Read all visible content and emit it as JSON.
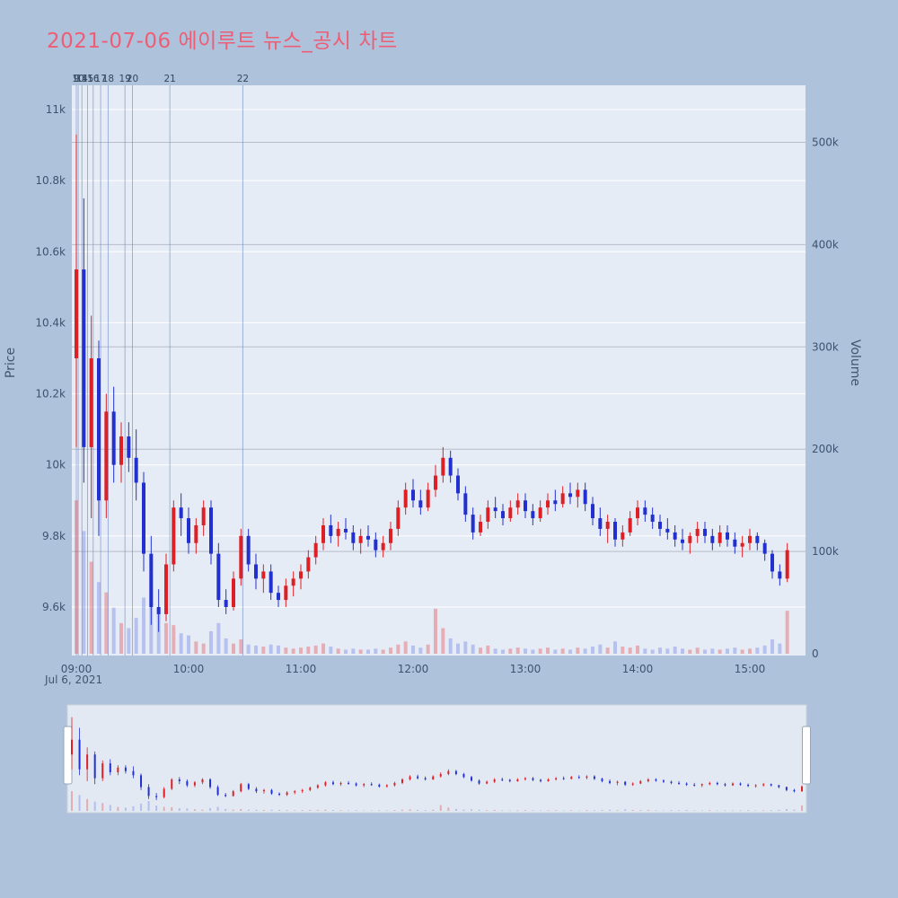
{
  "title": "2021-07-06 에이루트 뉴스_공시 차트",
  "date_label": "Jul 6, 2021",
  "colors": {
    "background": "#aec3db",
    "plot_background": "#e6ecf5",
    "title": "#ed5e76",
    "up": "#dd1f26",
    "down": "#2330d0",
    "up_volume": "rgba(225,60,70,0.35)",
    "down_volume": "rgba(95,115,230,0.35)",
    "grid_price": "#ffffff",
    "grid_volume": "#b6bdc9",
    "event_line": "#6d87c8",
    "tick_text": "#3e5270",
    "rangeslider_bg": "#e2e9f2",
    "rangeslider_border": "#c9d2de",
    "handle_fill": "#ffffff",
    "handle_border": "#99a5b6"
  },
  "chart_data": {
    "type": "candlestick",
    "title": "2021-07-06 에이루트 뉴스_공시 차트",
    "xlabel": "",
    "date": "Jul 6, 2021",
    "price_axis": {
      "label": "Price",
      "ticks": [
        {
          "v": 11.0,
          "label": "11k"
        },
        {
          "v": 10.8,
          "label": "10.8k"
        },
        {
          "v": 10.6,
          "label": "10.6k"
        },
        {
          "v": 10.4,
          "label": "10.4k"
        },
        {
          "v": 10.2,
          "label": "10.2k"
        },
        {
          "v": 10.0,
          "label": "10k"
        },
        {
          "v": 9.8,
          "label": "9.8k"
        },
        {
          "v": 9.6,
          "label": "9.6k"
        }
      ]
    },
    "volume_axis": {
      "label": "Volume",
      "ticks": [
        {
          "v": 500,
          "label": "500k"
        },
        {
          "v": 400,
          "label": "400k"
        },
        {
          "v": 300,
          "label": "300k"
        },
        {
          "v": 200,
          "label": "200k"
        },
        {
          "v": 100,
          "label": "100k"
        },
        {
          "v": 0,
          "label": "0"
        }
      ]
    },
    "x_ticks": [
      "09:00",
      "10:00",
      "11:00",
      "12:00",
      "13:00",
      "14:00",
      "15:00"
    ],
    "events": [
      {
        "id": "9",
        "time": "09:00"
      },
      {
        "id": "10",
        "time": "09:01"
      },
      {
        "id": "14",
        "time": "09:03"
      },
      {
        "id": "15",
        "time": "09:06"
      },
      {
        "id": "16",
        "time": "09:09"
      },
      {
        "id": "17",
        "time": "09:13"
      },
      {
        "id": "18",
        "time": "09:17"
      },
      {
        "id": "19",
        "time": "09:26"
      },
      {
        "id": "20",
        "time": "09:30"
      },
      {
        "id": "21",
        "time": "09:50"
      },
      {
        "id": "22",
        "time": "10:29"
      }
    ],
    "interval_minutes": 4,
    "units": "prices in thousands of KRW, volume in thousands of shares",
    "candles": [
      [
        "09:00",
        10.3,
        10.93,
        10.05,
        10.55,
        150
      ],
      [
        "09:04",
        10.55,
        10.75,
        9.95,
        10.05,
        120
      ],
      [
        "09:08",
        10.05,
        10.42,
        9.85,
        10.3,
        90
      ],
      [
        "09:12",
        10.3,
        10.35,
        9.8,
        9.9,
        70
      ],
      [
        "09:16",
        9.9,
        10.2,
        9.85,
        10.15,
        60
      ],
      [
        "09:20",
        10.15,
        10.22,
        9.95,
        10.0,
        45
      ],
      [
        "09:24",
        10.0,
        10.12,
        9.95,
        10.08,
        30
      ],
      [
        "09:28",
        10.08,
        10.12,
        9.98,
        10.02,
        25
      ],
      [
        "09:32",
        10.02,
        10.1,
        9.9,
        9.95,
        35
      ],
      [
        "09:36",
        9.95,
        9.98,
        9.7,
        9.75,
        55
      ],
      [
        "09:40",
        9.75,
        9.8,
        9.55,
        9.6,
        75
      ],
      [
        "09:44",
        9.6,
        9.65,
        9.53,
        9.58,
        40
      ],
      [
        "09:48",
        9.58,
        9.75,
        9.56,
        9.72,
        30
      ],
      [
        "09:52",
        9.72,
        9.9,
        9.7,
        9.88,
        28
      ],
      [
        "09:56",
        9.88,
        9.92,
        9.8,
        9.85,
        20
      ],
      [
        "10:00",
        9.85,
        9.88,
        9.75,
        9.78,
        18
      ],
      [
        "10:04",
        9.78,
        9.85,
        9.75,
        9.83,
        12
      ],
      [
        "10:08",
        9.83,
        9.9,
        9.8,
        9.88,
        10
      ],
      [
        "10:12",
        9.88,
        9.9,
        9.72,
        9.75,
        22
      ],
      [
        "10:16",
        9.75,
        9.78,
        9.6,
        9.62,
        30
      ],
      [
        "10:20",
        9.62,
        9.65,
        9.58,
        9.6,
        15
      ],
      [
        "10:24",
        9.6,
        9.7,
        9.59,
        9.68,
        10
      ],
      [
        "10:28",
        9.68,
        9.82,
        9.66,
        9.8,
        14
      ],
      [
        "10:32",
        9.8,
        9.82,
        9.7,
        9.72,
        9
      ],
      [
        "10:36",
        9.72,
        9.75,
        9.65,
        9.68,
        8
      ],
      [
        "10:40",
        9.68,
        9.72,
        9.64,
        9.7,
        7
      ],
      [
        "10:44",
        9.7,
        9.72,
        9.62,
        9.64,
        9
      ],
      [
        "10:48",
        9.64,
        9.66,
        9.6,
        9.62,
        8
      ],
      [
        "10:52",
        9.62,
        9.68,
        9.6,
        9.66,
        6
      ],
      [
        "10:56",
        9.66,
        9.7,
        9.63,
        9.68,
        5
      ],
      [
        "11:00",
        9.68,
        9.72,
        9.65,
        9.7,
        6
      ],
      [
        "11:04",
        9.7,
        9.76,
        9.68,
        9.74,
        7
      ],
      [
        "11:08",
        9.74,
        9.8,
        9.72,
        9.78,
        8
      ],
      [
        "11:12",
        9.78,
        9.85,
        9.76,
        9.83,
        10
      ],
      [
        "11:16",
        9.83,
        9.86,
        9.78,
        9.8,
        7
      ],
      [
        "11:20",
        9.8,
        9.84,
        9.77,
        9.82,
        5
      ],
      [
        "11:24",
        9.82,
        9.85,
        9.79,
        9.81,
        4
      ],
      [
        "11:28",
        9.81,
        9.83,
        9.76,
        9.78,
        5
      ],
      [
        "11:32",
        9.78,
        9.82,
        9.75,
        9.8,
        4
      ],
      [
        "11:36",
        9.8,
        9.83,
        9.77,
        9.79,
        4
      ],
      [
        "11:40",
        9.79,
        9.81,
        9.74,
        9.76,
        5
      ],
      [
        "11:44",
        9.76,
        9.8,
        9.74,
        9.78,
        4
      ],
      [
        "11:48",
        9.78,
        9.84,
        9.76,
        9.82,
        6
      ],
      [
        "11:52",
        9.82,
        9.9,
        9.8,
        9.88,
        9
      ],
      [
        "11:56",
        9.88,
        9.95,
        9.86,
        9.93,
        12
      ],
      [
        "12:00",
        9.93,
        9.96,
        9.88,
        9.9,
        8
      ],
      [
        "12:04",
        9.9,
        9.93,
        9.86,
        9.88,
        6
      ],
      [
        "12:08",
        9.88,
        9.95,
        9.87,
        9.93,
        9
      ],
      [
        "12:12",
        9.93,
        10.0,
        9.91,
        9.97,
        44
      ],
      [
        "12:16",
        9.97,
        10.05,
        9.95,
        10.02,
        25
      ],
      [
        "12:20",
        10.02,
        10.04,
        9.95,
        9.97,
        15
      ],
      [
        "12:24",
        9.97,
        9.99,
        9.9,
        9.92,
        10
      ],
      [
        "12:28",
        9.92,
        9.94,
        9.84,
        9.86,
        12
      ],
      [
        "12:32",
        9.86,
        9.88,
        9.79,
        9.81,
        9
      ],
      [
        "12:36",
        9.81,
        9.86,
        9.8,
        9.84,
        6
      ],
      [
        "12:40",
        9.84,
        9.9,
        9.82,
        9.88,
        8
      ],
      [
        "12:44",
        9.88,
        9.91,
        9.85,
        9.87,
        5
      ],
      [
        "12:48",
        9.87,
        9.89,
        9.83,
        9.85,
        4
      ],
      [
        "12:52",
        9.85,
        9.9,
        9.84,
        9.88,
        5
      ],
      [
        "12:56",
        9.88,
        9.92,
        9.86,
        9.9,
        6
      ],
      [
        "13:00",
        9.9,
        9.92,
        9.85,
        9.87,
        5
      ],
      [
        "13:04",
        9.87,
        9.89,
        9.83,
        9.85,
        4
      ],
      [
        "13:08",
        9.85,
        9.9,
        9.84,
        9.88,
        5
      ],
      [
        "13:12",
        9.88,
        9.92,
        9.86,
        9.9,
        6
      ],
      [
        "13:16",
        9.9,
        9.93,
        9.87,
        9.89,
        4
      ],
      [
        "13:20",
        9.89,
        9.94,
        9.88,
        9.92,
        5
      ],
      [
        "13:24",
        9.92,
        9.95,
        9.89,
        9.91,
        4
      ],
      [
        "13:28",
        9.91,
        9.95,
        9.88,
        9.93,
        6
      ],
      [
        "13:32",
        9.93,
        9.95,
        9.87,
        9.89,
        5
      ],
      [
        "13:36",
        9.89,
        9.91,
        9.83,
        9.85,
        7
      ],
      [
        "13:40",
        9.85,
        9.88,
        9.8,
        9.82,
        9
      ],
      [
        "13:44",
        9.82,
        9.86,
        9.78,
        9.84,
        6
      ],
      [
        "13:48",
        9.84,
        9.85,
        9.77,
        9.79,
        12
      ],
      [
        "13:52",
        9.79,
        9.83,
        9.77,
        9.81,
        7
      ],
      [
        "13:56",
        9.81,
        9.87,
        9.8,
        9.85,
        6
      ],
      [
        "14:00",
        9.85,
        9.9,
        9.83,
        9.88,
        8
      ],
      [
        "14:04",
        9.88,
        9.9,
        9.84,
        9.86,
        5
      ],
      [
        "14:08",
        9.86,
        9.88,
        9.82,
        9.84,
        4
      ],
      [
        "14:12",
        9.84,
        9.86,
        9.8,
        9.82,
        6
      ],
      [
        "14:16",
        9.82,
        9.85,
        9.79,
        9.81,
        5
      ],
      [
        "14:20",
        9.81,
        9.83,
        9.77,
        9.79,
        7
      ],
      [
        "14:24",
        9.79,
        9.82,
        9.76,
        9.78,
        5
      ],
      [
        "14:28",
        9.78,
        9.81,
        9.75,
        9.8,
        4
      ],
      [
        "14:32",
        9.8,
        9.84,
        9.78,
        9.82,
        6
      ],
      [
        "14:36",
        9.82,
        9.84,
        9.78,
        9.8,
        4
      ],
      [
        "14:40",
        9.8,
        9.82,
        9.76,
        9.78,
        5
      ],
      [
        "14:44",
        9.78,
        9.83,
        9.77,
        9.81,
        4
      ],
      [
        "14:48",
        9.81,
        9.83,
        9.77,
        9.79,
        5
      ],
      [
        "14:52",
        9.79,
        9.81,
        9.75,
        9.77,
        6
      ],
      [
        "14:56",
        9.77,
        9.8,
        9.74,
        9.78,
        4
      ],
      [
        "15:00",
        9.78,
        9.82,
        9.76,
        9.8,
        5
      ],
      [
        "15:04",
        9.8,
        9.81,
        9.76,
        9.78,
        6
      ],
      [
        "15:08",
        9.78,
        9.79,
        9.73,
        9.75,
        8
      ],
      [
        "15:12",
        9.75,
        9.76,
        9.68,
        9.7,
        14
      ],
      [
        "15:16",
        9.7,
        9.72,
        9.66,
        9.68,
        10
      ],
      [
        "15:20",
        9.68,
        9.78,
        9.67,
        9.76,
        42
      ]
    ],
    "layout_hints": {
      "grid": "horizontal volume gridlines gray, price gridlines white",
      "legend": "none",
      "rangeslider": true,
      "price_range": [
        9.46,
        11.07
      ],
      "volume_range": [
        0,
        557
      ]
    }
  }
}
